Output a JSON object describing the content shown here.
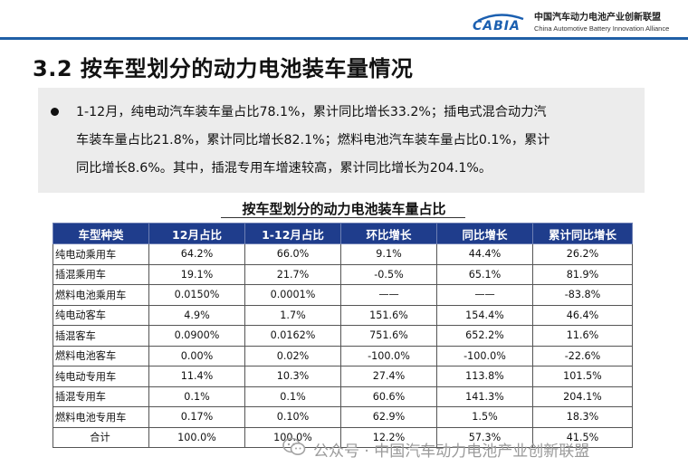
{
  "header": {
    "logo_word": "CABIA",
    "org_cn": "中国汽车动力电池产业创新联盟",
    "org_en": "China Automotive Battery Innovation Alliance",
    "accent_color": "#1f5fa6"
  },
  "title": "3.2 按车型划分的动力电池装车量情况",
  "summary": {
    "lines": [
      "1-12月，纯电动汽车装车量占比78.1%，累计同比增长33.2%；插电式混合动力汽",
      "车装车量占比21.8%，累计同比增长82.1%；燃料电池汽车装车量占比0.1%，累计",
      "同比增长8.6%。其中，插混专用车增速较高，累计同比增长为204.1%。"
    ]
  },
  "table": {
    "caption": "按车型划分的动力电池装车量占比",
    "header_color": "#1f3d8c",
    "columns": [
      "车型种类",
      "12月占比",
      "1-12月占比",
      "环比增长",
      "同比增长",
      "累计同比增长"
    ],
    "rows": [
      [
        "纯电动乘用车",
        "64.2%",
        "66.0%",
        "9.1%",
        "44.4%",
        "26.2%"
      ],
      [
        "插混乘用车",
        "19.1%",
        "21.7%",
        "-0.5%",
        "65.1%",
        "81.9%"
      ],
      [
        "燃料电池乘用车",
        "0.0150%",
        "0.0001%",
        "——",
        "——",
        "-83.8%"
      ],
      [
        "纯电动客车",
        "4.9%",
        "1.7%",
        "151.6%",
        "154.4%",
        "46.4%"
      ],
      [
        "插混客车",
        "0.0900%",
        "0.0162%",
        "751.6%",
        "652.2%",
        "11.6%"
      ],
      [
        "燃料电池客车",
        "0.00%",
        "0.02%",
        "-100.0%",
        "-100.0%",
        "-22.6%"
      ],
      [
        "纯电动专用车",
        "11.4%",
        "10.3%",
        "27.4%",
        "113.8%",
        "101.5%"
      ],
      [
        "插混专用车",
        "0.1%",
        "0.1%",
        "60.6%",
        "141.3%",
        "204.1%"
      ],
      [
        "燃料电池专用车",
        "0.17%",
        "0.10%",
        "62.9%",
        "1.5%",
        "18.3%"
      ],
      [
        "合计",
        "100.0%",
        "100.0%",
        "12.2%",
        "57.3%",
        "41.5%"
      ]
    ]
  },
  "watermark": {
    "icon": "wechat-icon",
    "text": "公众号 · 中国汽车动力电池产业创新联盟"
  }
}
